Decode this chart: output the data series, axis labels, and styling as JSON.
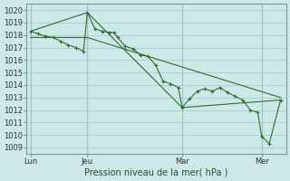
{
  "bg_color": "#cce8e8",
  "grid_color": "#aacccc",
  "line_color": "#2d6e2d",
  "marker_color": "#2d6e2d",
  "xlabel": "Pression niveau de la mer( hPa )",
  "ylim": [
    1008.5,
    1020.5
  ],
  "yticks": [
    1009,
    1010,
    1011,
    1012,
    1013,
    1014,
    1015,
    1016,
    1017,
    1018,
    1019,
    1020
  ],
  "x_tick_labels": [
    "Lun",
    "Jeu",
    "Mar",
    "Mer"
  ],
  "x_tick_positions": [
    0,
    30,
    80,
    122
  ],
  "vline_positions": [
    0,
    30,
    80,
    122
  ],
  "xlim": [
    -2,
    135
  ],
  "series": [
    {
      "x": [
        0,
        4,
        8,
        12,
        16,
        20,
        24,
        28,
        30,
        34,
        38,
        42,
        44,
        46,
        50,
        54,
        58,
        62,
        66,
        70,
        74,
        78,
        80,
        84,
        88,
        92,
        96,
        100,
        104,
        108,
        112,
        116,
        120,
        122,
        126,
        132
      ],
      "y": [
        1018.3,
        1018.1,
        1017.9,
        1017.8,
        1017.5,
        1017.2,
        1017.0,
        1016.7,
        1019.8,
        1018.5,
        1018.3,
        1018.2,
        1018.2,
        1017.8,
        1017.1,
        1016.9,
        1016.4,
        1016.3,
        1015.6,
        1014.3,
        1014.1,
        1013.8,
        1012.2,
        1012.9,
        1013.5,
        1013.7,
        1013.5,
        1013.8,
        1013.4,
        1013.1,
        1012.8,
        1012.0,
        1011.8,
        1009.9,
        1009.3,
        1012.8
      ],
      "has_markers": true
    },
    {
      "x": [
        0,
        30,
        80,
        132
      ],
      "y": [
        1018.3,
        1019.8,
        1012.2,
        1012.8
      ],
      "has_markers": false
    },
    {
      "x": [
        0,
        30,
        132
      ],
      "y": [
        1017.8,
        1017.8,
        1013.0
      ],
      "has_markers": false
    }
  ],
  "title_fontsize": 7,
  "tick_fontsize": 6,
  "label_fontsize": 7
}
